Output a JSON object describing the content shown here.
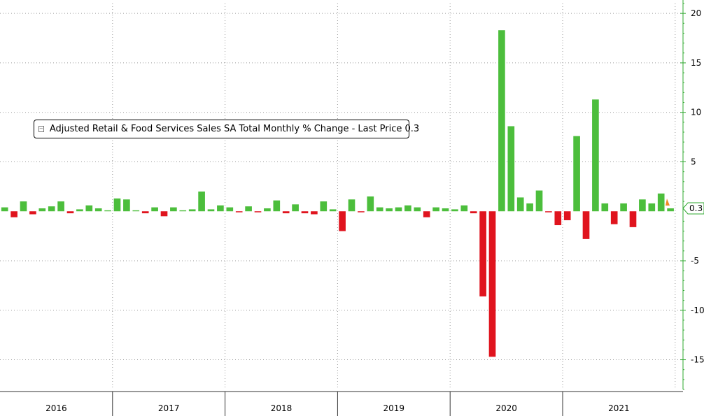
{
  "chart_data": {
    "type": "bar",
    "legend": {
      "label": "Adjusted Retail & Food Services Sales SA Total Monthly % Change - Last Price 0.3",
      "placement": "top-left",
      "toggle_icon": "collapse-icon"
    },
    "last_price_label": "0.3",
    "ylim": [
      -18,
      21
    ],
    "yticks": [
      20,
      15,
      10,
      5,
      -5,
      -10,
      -15
    ],
    "grid": true,
    "colors": {
      "positive": "#4cbe3c",
      "negative": "#e0141e",
      "axis": "#2fa82f",
      "marker": "#f08a24"
    },
    "years": [
      "2016",
      "2017",
      "2018",
      "2019",
      "2020",
      "2021"
    ],
    "values": [
      0.4,
      -0.6,
      1.0,
      -0.3,
      0.3,
      0.5,
      1.0,
      -0.2,
      0.2,
      0.6,
      0.3,
      0.1,
      1.3,
      1.2,
      0.1,
      -0.2,
      0.4,
      -0.5,
      0.4,
      0.1,
      0.2,
      2.0,
      0.2,
      0.6,
      0.4,
      -0.1,
      0.5,
      -0.1,
      0.3,
      1.1,
      -0.2,
      0.7,
      -0.2,
      -0.3,
      1.0,
      0.2,
      -2.0,
      1.2,
      -0.1,
      1.5,
      0.4,
      0.3,
      0.4,
      0.6,
      0.4,
      -0.6,
      0.4,
      0.3,
      0.2,
      0.6,
      -0.2,
      -8.6,
      -14.7,
      18.3,
      8.6,
      1.4,
      0.8,
      2.1,
      -0.1,
      -1.4,
      -0.9,
      7.6,
      -2.8,
      11.3,
      0.8,
      -1.3,
      0.8,
      -1.6,
      1.2,
      0.8,
      1.8,
      0.3
    ]
  }
}
